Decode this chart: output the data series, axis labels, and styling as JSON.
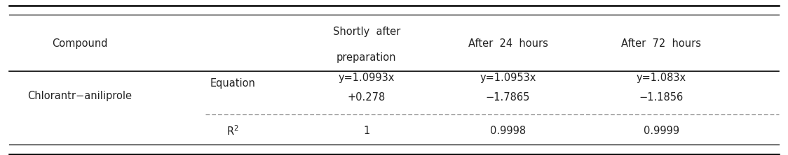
{
  "figsize": [
    11.24,
    2.22
  ],
  "dpi": 100,
  "bg_color": "#ffffff",
  "r2_label": "R²",
  "r2_shortly": "1",
  "r2_24": "0.9998",
  "r2_72": "0.9999",
  "font_size": 10.5,
  "text_color": "#222222",
  "line_color": "#555555",
  "thick_line_color": "#000000"
}
